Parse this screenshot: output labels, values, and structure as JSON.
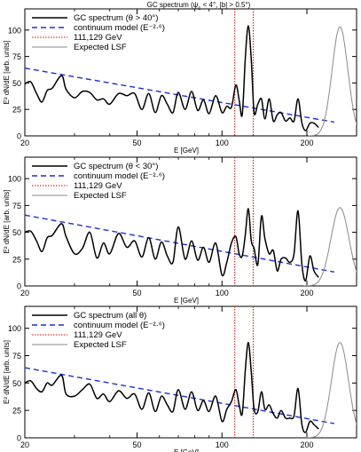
{
  "figure": {
    "title": "GC spectrum (ψ",
    "title_sub": "c",
    "title_rest": " < 4°, |b| > 0.5°)"
  },
  "chart_data": [
    {
      "type": "line",
      "xscale": "log",
      "xlim": [
        20,
        300
      ],
      "ylim": [
        0,
        120
      ],
      "xticks": [
        20,
        50,
        100,
        200
      ],
      "yticks": [
        0,
        25,
        50,
        75,
        100
      ],
      "xlabel": "E [GeV]",
      "ylabel": "E² dN/dE [arb. units]",
      "legend": [
        "GC spectrum (θ > 40°)",
        "continuum model (E⁻²·⁶)",
        "111,129 GeV",
        "Expected LSF"
      ],
      "continuum": {
        "x": [
          20,
          250
        ],
        "y": [
          64,
          13
        ]
      },
      "lines_gev": [
        111,
        129
      ],
      "lsf": {
        "center_x": 262,
        "peak": 103,
        "width": 0.028
      },
      "spectrum": {
        "x": [
          20,
          21,
          22,
          23,
          24,
          25,
          27,
          28,
          30,
          32,
          34,
          36,
          38,
          40,
          43,
          46,
          49,
          52,
          55,
          58,
          61,
          64,
          67,
          70,
          74,
          78,
          82,
          86,
          90,
          95,
          100,
          104,
          108,
          112,
          115,
          118,
          121,
          124,
          127,
          130,
          134,
          138,
          142,
          147,
          152,
          157,
          162,
          168,
          174,
          180,
          186,
          192,
          198,
          205,
          212,
          220
        ],
        "y": [
          49,
          51,
          40,
          32,
          43,
          45,
          57,
          44,
          36,
          42,
          41,
          34,
          35,
          30,
          40,
          38,
          40,
          25,
          40,
          22,
          38,
          30,
          22,
          41,
          25,
          42,
          24,
          34,
          21,
          38,
          22,
          28,
          27,
          48,
          34,
          20,
          74,
          104,
          72,
          22,
          30,
          35,
          16,
          35,
          14,
          20,
          22,
          14,
          17,
          14,
          35,
          12,
          5,
          12,
          12,
          8
        ]
      }
    },
    {
      "type": "line",
      "xscale": "log",
      "xlim": [
        20,
        300
      ],
      "ylim": [
        0,
        120
      ],
      "xticks": [
        20,
        50,
        100,
        200
      ],
      "yticks": [
        0,
        25,
        50,
        75,
        100
      ],
      "xlabel": "E [GeV]",
      "ylabel": "E² dN/dE [arb. units]",
      "legend": [
        "GC spectrum (θ < 30°)",
        "continuum model (E⁻²·⁶)",
        "111,129 GeV",
        "Expected LSF"
      ],
      "continuum": {
        "x": [
          20,
          250
        ],
        "y": [
          66,
          13
        ]
      },
      "lines_gev": [
        111,
        129
      ],
      "lsf": {
        "center_x": 262,
        "peak": 73,
        "width": 0.032
      },
      "spectrum": {
        "x": [
          20,
          21,
          22,
          23,
          24,
          25,
          27,
          28,
          30,
          32,
          34,
          36,
          38,
          40,
          43,
          46,
          49,
          52,
          55,
          58,
          61,
          64,
          67,
          70,
          74,
          78,
          82,
          86,
          90,
          95,
          100,
          104,
          108,
          112,
          115,
          118,
          121,
          124,
          127,
          130,
          134,
          138,
          142,
          147,
          152,
          157,
          162,
          168,
          174,
          180,
          186,
          192,
          198,
          205,
          212,
          220
        ],
        "y": [
          50,
          51,
          42,
          32,
          45,
          47,
          58,
          46,
          30,
          35,
          50,
          26,
          40,
          30,
          49,
          36,
          42,
          27,
          45,
          25,
          41,
          28,
          22,
          55,
          25,
          42,
          24,
          36,
          22,
          40,
          10,
          22,
          40,
          46,
          30,
          28,
          48,
          72,
          42,
          35,
          20,
          65,
          44,
          30,
          33,
          14,
          25,
          26,
          22,
          30,
          70,
          20,
          5,
          28,
          14,
          8
        ]
      }
    },
    {
      "type": "line",
      "xscale": "log",
      "xlim": [
        20,
        300
      ],
      "ylim": [
        0,
        120
      ],
      "xticks": [
        20,
        50,
        100,
        200
      ],
      "yticks": [
        0,
        25,
        50,
        75,
        100
      ],
      "xlabel": "E [GeV]",
      "ylabel": "E² dN/dE [arb. units]",
      "legend": [
        "GC spectrum (all θ)",
        "continuum model (E⁻²·⁶)",
        "111,129 GeV",
        "Expected LSF"
      ],
      "continuum": {
        "x": [
          20,
          250
        ],
        "y": [
          64,
          13
        ]
      },
      "lines_gev": [
        111,
        129
      ],
      "lsf": {
        "center_x": 262,
        "peak": 87,
        "width": 0.03
      },
      "spectrum": {
        "x": [
          20,
          21,
          22,
          23,
          24,
          25,
          27,
          28,
          30,
          32,
          34,
          36,
          38,
          40,
          43,
          46,
          49,
          52,
          55,
          58,
          61,
          64,
          67,
          70,
          74,
          78,
          82,
          86,
          90,
          95,
          100,
          104,
          108,
          112,
          115,
          118,
          121,
          124,
          127,
          130,
          134,
          138,
          142,
          147,
          152,
          157,
          162,
          168,
          174,
          180,
          186,
          192,
          198,
          205,
          212,
          220
        ],
        "y": [
          50,
          52,
          45,
          42,
          50,
          48,
          57,
          40,
          38,
          44,
          49,
          36,
          40,
          33,
          43,
          36,
          40,
          26,
          41,
          24,
          38,
          30,
          24,
          44,
          26,
          42,
          25,
          34,
          24,
          38,
          15,
          26,
          33,
          44,
          30,
          22,
          62,
          87,
          60,
          26,
          24,
          42,
          26,
          30,
          22,
          18,
          25,
          18,
          18,
          20,
          45,
          12,
          5,
          15,
          12,
          8
        ]
      }
    }
  ]
}
